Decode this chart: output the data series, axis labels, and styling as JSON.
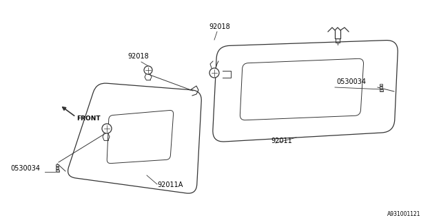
{
  "bg_color": "#ffffff",
  "line_color": "#333333",
  "text_color": "#000000",
  "diagram_id": "A931001121",
  "figsize": [
    6.4,
    3.2
  ],
  "dpi": 100,
  "xlim": [
    0,
    640
  ],
  "ylim": [
    0,
    320
  ],
  "label_92011A": "92011A",
  "label_92011": "92011",
  "label_92018": "92018",
  "label_0530034": "0530034",
  "label_front": "FRONT"
}
